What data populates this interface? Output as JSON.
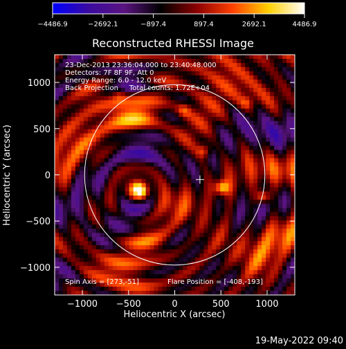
{
  "chart_data": {
    "type": "heatmap",
    "title": "Reconstructed RHESSI Image",
    "xlabel": "Heliocentric X (arcsec)",
    "ylabel": "Heliocentric Y (arcsec)",
    "xlim": [
      -1300,
      1300
    ],
    "ylim": [
      -1300,
      1300
    ],
    "xticks": [
      -1000,
      -500,
      0,
      500,
      1000
    ],
    "xtick_labels": [
      "−1000",
      "−500",
      "0",
      "500",
      "1000"
    ],
    "yticks": [
      -1000,
      -500,
      0,
      500,
      1000
    ],
    "ytick_labels": [
      "−1000",
      "−500",
      "0",
      "500",
      "1000"
    ],
    "colorbar": {
      "min": -4486.9,
      "max": 4486.9,
      "ticks": [
        -4486.9,
        -2692.1,
        -897.4,
        897.4,
        2692.1,
        4486.9
      ],
      "tick_labels": [
        "−4486.9",
        "−2692.1",
        "−897.4",
        "897.4",
        "2692.1",
        "4486.9"
      ],
      "colors": [
        "#0000ff",
        "#3a0aa0",
        "#5a1480",
        "#000000",
        "#8a0000",
        "#ff4000",
        "#ffd000",
        "#ffffff"
      ]
    },
    "annotations": [
      "23-Dec-2013 23:36:04.000 to 23:40:48.000",
      "Detectors: 7F 8F 9F, Att 0",
      "Energy Range: 6.0 - 12.0 keV",
      "Back Projection     Total counts: 1.72E+04"
    ],
    "footer_left": "Spin Axis = [273,-51]",
    "footer_right": "Flare Position = [-408,-193]",
    "solar_disk_radius": 976,
    "spin_axis": [
      273,
      -51
    ],
    "peaks": [
      {
        "x": -390,
        "y": -180,
        "value": 4486.9
      },
      {
        "x": 510,
        "y": -140,
        "value": 3600
      },
      {
        "x": 960,
        "y": -240,
        "value": 3900
      },
      {
        "x": 320,
        "y": 260,
        "value": 2600
      },
      {
        "x": 100,
        "y": 700,
        "value": 1800
      },
      {
        "x": -600,
        "y": 880,
        "value": 1700
      },
      {
        "x": 780,
        "y": 780,
        "value": 1700
      }
    ]
  },
  "timestamp": "19-May-2022 09:40"
}
